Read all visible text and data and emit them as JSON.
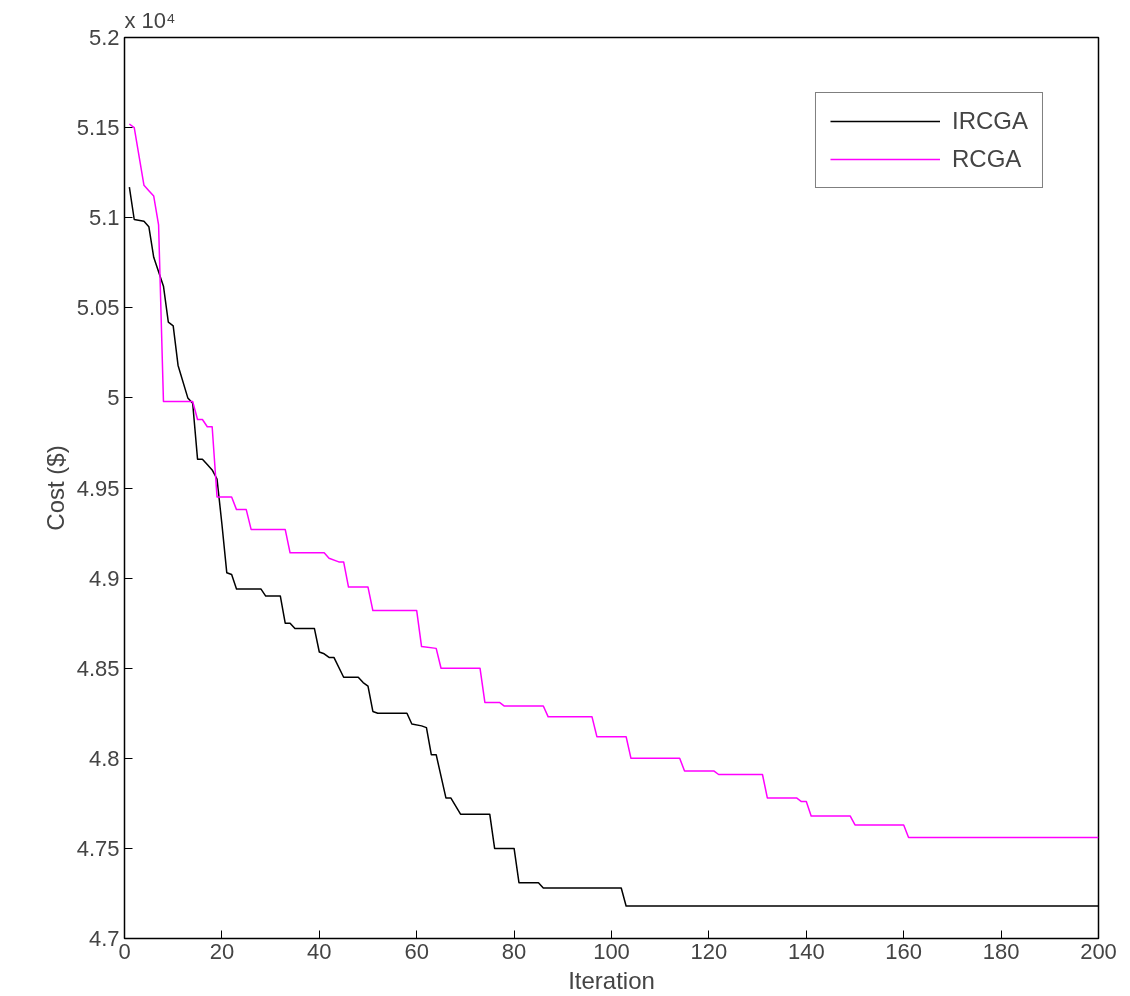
{
  "chart_data": {
    "type": "line",
    "xlabel": "Iteration",
    "ylabel": "Cost ($)",
    "annotations": [
      "x 10⁴"
    ],
    "xlim": [
      0,
      200
    ],
    "xticks": [
      0,
      20,
      40,
      60,
      80,
      100,
      120,
      140,
      160,
      180,
      200
    ],
    "ylim": [
      4.7,
      5.2
    ],
    "yticks": [
      4.7,
      4.75,
      4.8,
      4.85,
      4.9,
      4.95,
      5,
      5.05,
      5.1,
      5.15,
      5.2
    ],
    "grid": false,
    "legend": "top right",
    "line_style": "solid",
    "series": [
      {
        "name": "IRCGA",
        "color": "#000000",
        "x": [
          1,
          2,
          4,
          5,
          6,
          8,
          9,
          10,
          11,
          13,
          14,
          15,
          16,
          17,
          18,
          19,
          20,
          21,
          22,
          23,
          28,
          29,
          32,
          33,
          34,
          35,
          39,
          40,
          41,
          42,
          43,
          45,
          48,
          49,
          50,
          51,
          52,
          58,
          59,
          61,
          62,
          63,
          64,
          66,
          67,
          69,
          75,
          76,
          80,
          81,
          85,
          86,
          102,
          103,
          200
        ],
        "values": [
          5.117,
          5.099,
          5.098,
          5.095,
          5.078,
          5.062,
          5.042,
          5.04,
          5.018,
          5.0,
          4.997,
          4.966,
          4.966,
          4.963,
          4.96,
          4.955,
          4.93,
          4.903,
          4.902,
          4.894,
          4.894,
          4.89,
          4.89,
          4.875,
          4.875,
          4.872,
          4.872,
          4.859,
          4.858,
          4.856,
          4.856,
          4.845,
          4.845,
          4.842,
          4.84,
          4.826,
          4.825,
          4.825,
          4.819,
          4.818,
          4.817,
          4.802,
          4.802,
          4.778,
          4.778,
          4.769,
          4.769,
          4.75,
          4.75,
          4.731,
          4.731,
          4.728,
          4.728,
          4.718,
          4.718
        ]
      },
      {
        "name": "RCGA",
        "color": "#ff00ff",
        "x": [
          1,
          2,
          4,
          5,
          6,
          7,
          8,
          14,
          15,
          16,
          17,
          18,
          19,
          22,
          23,
          25,
          26,
          33,
          34,
          41,
          42,
          44,
          45,
          46,
          50,
          51,
          60,
          61,
          64,
          65,
          73,
          74,
          77,
          78,
          86,
          87,
          96,
          97,
          103,
          104,
          114,
          115,
          121,
          122,
          131,
          132,
          138,
          139,
          140,
          141,
          149,
          150,
          160,
          161,
          200
        ],
        "values": [
          5.152,
          5.15,
          5.118,
          5.115,
          5.112,
          5.096,
          4.998,
          4.998,
          4.988,
          4.988,
          4.984,
          4.984,
          4.945,
          4.945,
          4.938,
          4.938,
          4.927,
          4.927,
          4.914,
          4.914,
          4.911,
          4.909,
          4.909,
          4.895,
          4.895,
          4.882,
          4.882,
          4.862,
          4.861,
          4.85,
          4.85,
          4.831,
          4.831,
          4.829,
          4.829,
          4.823,
          4.823,
          4.812,
          4.812,
          4.8,
          4.8,
          4.793,
          4.793,
          4.791,
          4.791,
          4.778,
          4.778,
          4.776,
          4.776,
          4.768,
          4.768,
          4.763,
          4.763,
          4.756,
          4.756
        ]
      }
    ]
  }
}
